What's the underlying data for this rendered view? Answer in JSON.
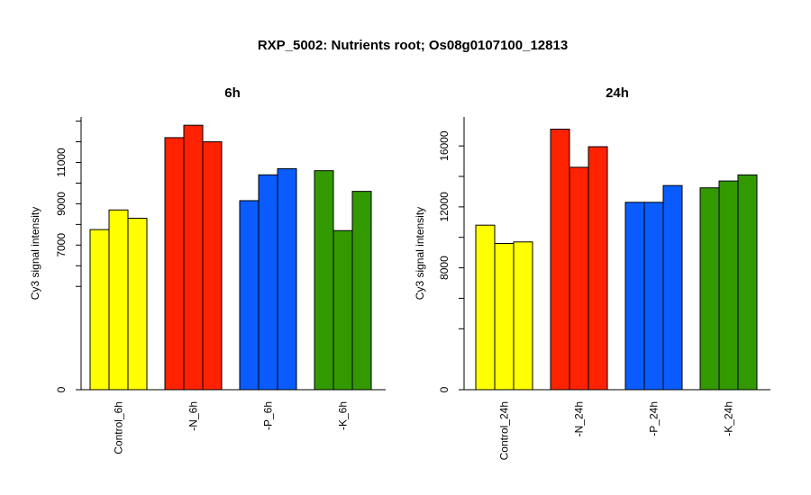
{
  "title": "RXP_5002: Nutrients root; Os08g0107100_12813",
  "chart_data": [
    {
      "type": "bar",
      "title": "6h",
      "ylabel": "Cy3 signal intensity",
      "ylim": [
        0,
        13200
      ],
      "yticks": [
        0,
        7000,
        9000,
        11000
      ],
      "categories": [
        "Control_6h",
        "-N_6h",
        "-P_6h",
        "-K_6h"
      ],
      "colors": [
        "#ffff00",
        "#ff2200",
        "#0a5cff",
        "#339900"
      ],
      "values": [
        [
          7750,
          8700,
          8300
        ],
        [
          12200,
          12800,
          12000
        ],
        [
          9150,
          10400,
          10700
        ],
        [
          10600,
          7700,
          9600
        ]
      ]
    },
    {
      "type": "bar",
      "title": "24h",
      "ylabel": "Cy3 signal intensity",
      "ylim": [
        0,
        17900
      ],
      "yticks": [
        0,
        8000,
        12000,
        16000
      ],
      "categories": [
        "Control_24h",
        "-N_24h",
        "-P_24h",
        "-K_24h"
      ],
      "colors": [
        "#ffff00",
        "#ff2200",
        "#0a5cff",
        "#339900"
      ],
      "values": [
        [
          10800,
          9600,
          9700
        ],
        [
          17100,
          14600,
          15950
        ],
        [
          12300,
          12300,
          13400
        ],
        [
          13250,
          13700,
          14100
        ]
      ]
    }
  ]
}
